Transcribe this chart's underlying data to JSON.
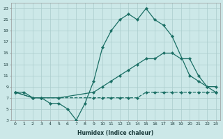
{
  "xlabel": "Humidex (Indice chaleur)",
  "background_color": "#cce8e8",
  "grid_color": "#aacccc",
  "line_color": "#1a6e64",
  "xlim": [
    -0.5,
    23.5
  ],
  "ylim": [
    3,
    24
  ],
  "xticks": [
    0,
    1,
    2,
    3,
    4,
    5,
    6,
    7,
    8,
    9,
    10,
    11,
    12,
    13,
    14,
    15,
    16,
    17,
    18,
    19,
    20,
    21,
    22,
    23
  ],
  "yticks": [
    3,
    5,
    7,
    9,
    11,
    13,
    15,
    17,
    19,
    21,
    23
  ],
  "line1_x": [
    0,
    1,
    2,
    3,
    4,
    5,
    6,
    7,
    8,
    9,
    10,
    11,
    12,
    13,
    14,
    15,
    16,
    17,
    18,
    20,
    21,
    22,
    23
  ],
  "line1_y": [
    8,
    8,
    7,
    7,
    6,
    6,
    5,
    3,
    6,
    10,
    16,
    19,
    21,
    22,
    21,
    23,
    21,
    20,
    18,
    11,
    10,
    9,
    9
  ],
  "line2_x": [
    0,
    2,
    3,
    5,
    9,
    10,
    11,
    12,
    13,
    14,
    15,
    16,
    17,
    18,
    19,
    20,
    21,
    22,
    23
  ],
  "line2_y": [
    8,
    7,
    7,
    7,
    8,
    9,
    10,
    11,
    12,
    13,
    14,
    14,
    15,
    15,
    14,
    14,
    11,
    9,
    8
  ],
  "line3_x": [
    0,
    2,
    3,
    5,
    9,
    10,
    11,
    12,
    13,
    14,
    15,
    16,
    17,
    18,
    19,
    20,
    21,
    22,
    23
  ],
  "line3_y": [
    8,
    7,
    7,
    7,
    7,
    7,
    7,
    7,
    7,
    7,
    8,
    8,
    8,
    8,
    8,
    8,
    8,
    8,
    8
  ]
}
